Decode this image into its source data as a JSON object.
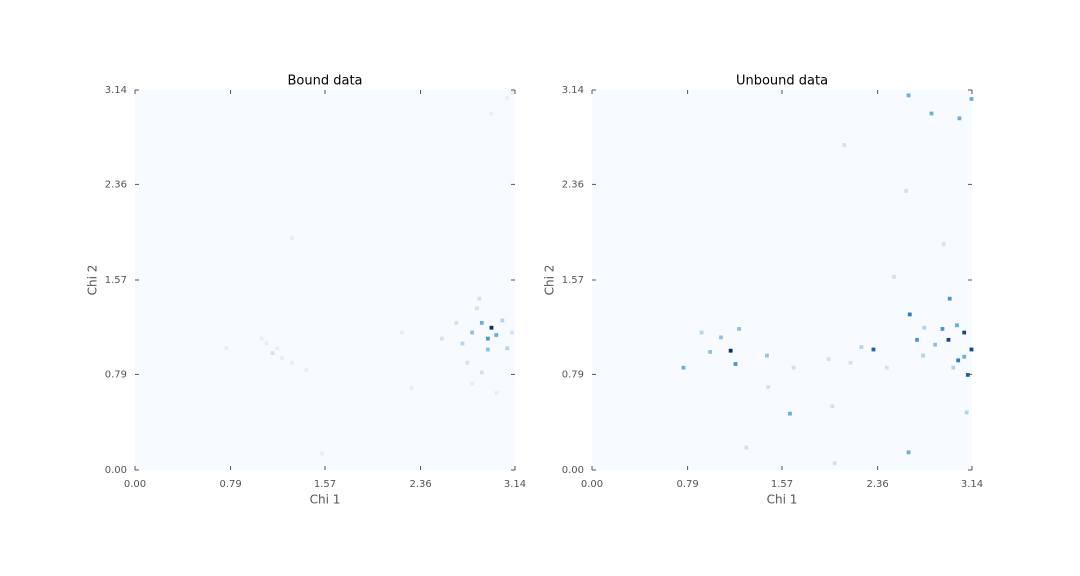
{
  "chart_data": [
    {
      "type": "hist2d",
      "title": "Bound data",
      "xlabel": "Chi 1",
      "ylabel": "Chi 2",
      "xlim": [
        0,
        3.14
      ],
      "ylim": [
        0,
        3.14
      ],
      "xticks": [
        {
          "value": 0,
          "label": "0.00"
        },
        0.79,
        1.57,
        2.36,
        3.14
      ],
      "yticks": [
        {
          "value": 0,
          "label": "0.00"
        },
        0.79,
        1.57,
        2.36,
        3.14
      ],
      "bin_size": 0.0314,
      "clim": [
        0,
        10
      ],
      "colors": [
        "#f7fbff",
        "#c6dbef",
        "#6baed6",
        "#2171b5",
        "#08306b"
      ],
      "cells": [
        {
          "x": 2.93,
          "y": 1.16,
          "count": 10
        },
        {
          "x": 2.9,
          "y": 1.07,
          "count": 6
        },
        {
          "x": 2.85,
          "y": 1.2,
          "count": 5
        },
        {
          "x": 2.97,
          "y": 1.1,
          "count": 5
        },
        {
          "x": 2.77,
          "y": 1.12,
          "count": 4
        },
        {
          "x": 2.9,
          "y": 0.98,
          "count": 4
        },
        {
          "x": 3.02,
          "y": 1.22,
          "count": 3
        },
        {
          "x": 2.69,
          "y": 1.03,
          "count": 3
        },
        {
          "x": 2.81,
          "y": 1.32,
          "count": 2
        },
        {
          "x": 3.06,
          "y": 0.99,
          "count": 3
        },
        {
          "x": 2.64,
          "y": 1.2,
          "count": 2
        },
        {
          "x": 2.52,
          "y": 1.07,
          "count": 2
        },
        {
          "x": 2.73,
          "y": 0.87,
          "count": 2
        },
        {
          "x": 2.85,
          "y": 0.79,
          "count": 2
        },
        {
          "x": 2.83,
          "y": 1.4,
          "count": 2
        },
        {
          "x": 3.1,
          "y": 1.12,
          "count": 2
        },
        {
          "x": 2.77,
          "y": 0.7,
          "count": 1
        },
        {
          "x": 2.97,
          "y": 0.62,
          "count": 1
        },
        {
          "x": 1.12,
          "y": 0.95,
          "count": 2
        },
        {
          "x": 1.07,
          "y": 1.03,
          "count": 1
        },
        {
          "x": 1.2,
          "y": 0.91,
          "count": 1
        },
        {
          "x": 1.03,
          "y": 1.07,
          "count": 1
        },
        {
          "x": 1.28,
          "y": 0.87,
          "count": 1
        },
        {
          "x": 1.16,
          "y": 0.99,
          "count": 1
        },
        {
          "x": 1.4,
          "y": 0.81,
          "count": 1
        },
        {
          "x": 3.06,
          "y": 3.06,
          "count": 1
        },
        {
          "x": 3.1,
          "y": 3.1,
          "count": 1
        },
        {
          "x": 2.93,
          "y": 2.93,
          "count": 1
        },
        {
          "x": 0.74,
          "y": 0.99,
          "count": 1
        },
        {
          "x": 2.27,
          "y": 0.66,
          "count": 1
        },
        {
          "x": 2.19,
          "y": 1.12,
          "count": 1
        },
        {
          "x": 1.53,
          "y": 0.12,
          "count": 1
        },
        {
          "x": 1.28,
          "y": 1.9,
          "count": 1
        }
      ]
    },
    {
      "type": "hist2d",
      "title": "Unbound data",
      "xlabel": "Chi 1",
      "ylabel": "Chi 2",
      "xlim": [
        0,
        3.14
      ],
      "ylim": [
        0,
        3.14
      ],
      "xticks": [
        {
          "value": 0,
          "label": "0.00"
        },
        0.79,
        1.57,
        2.36,
        3.14
      ],
      "yticks": [
        {
          "value": 0,
          "label": "0.00"
        },
        0.79,
        1.57,
        2.36,
        3.14
      ],
      "bin_size": 0.0314,
      "clim": [
        0,
        10
      ],
      "colors": [
        "#f7fbff",
        "#c6dbef",
        "#6baed6",
        "#2171b5",
        "#08306b"
      ],
      "cells": [
        {
          "x": 1.13,
          "y": 0.97,
          "count": 10
        },
        {
          "x": 1.17,
          "y": 0.86,
          "count": 6
        },
        {
          "x": 3.06,
          "y": 1.12,
          "count": 9
        },
        {
          "x": 2.93,
          "y": 1.06,
          "count": 9
        },
        {
          "x": 3.09,
          "y": 0.77,
          "count": 8
        },
        {
          "x": 2.61,
          "y": 1.27,
          "count": 7
        },
        {
          "x": 3.12,
          "y": 0.98,
          "count": 9
        },
        {
          "x": 2.67,
          "y": 1.06,
          "count": 6
        },
        {
          "x": 2.88,
          "y": 1.15,
          "count": 6
        },
        {
          "x": 3.01,
          "y": 0.89,
          "count": 7
        },
        {
          "x": 2.31,
          "y": 0.98,
          "count": 8
        },
        {
          "x": 0.74,
          "y": 0.83,
          "count": 5
        },
        {
          "x": 1.43,
          "y": 0.93,
          "count": 4
        },
        {
          "x": 1.2,
          "y": 1.15,
          "count": 4
        },
        {
          "x": 1.05,
          "y": 1.08,
          "count": 4
        },
        {
          "x": 0.96,
          "y": 0.96,
          "count": 4
        },
        {
          "x": 1.62,
          "y": 0.45,
          "count": 5
        },
        {
          "x": 2.6,
          "y": 3.08,
          "count": 5
        },
        {
          "x": 3.12,
          "y": 3.05,
          "count": 5
        },
        {
          "x": 2.79,
          "y": 2.93,
          "count": 5
        },
        {
          "x": 3.02,
          "y": 2.89,
          "count": 5
        },
        {
          "x": 2.6,
          "y": 0.13,
          "count": 5
        },
        {
          "x": 2.94,
          "y": 1.4,
          "count": 6
        },
        {
          "x": 0.89,
          "y": 1.12,
          "count": 3
        },
        {
          "x": 2.21,
          "y": 1.0,
          "count": 3
        },
        {
          "x": 1.26,
          "y": 0.17,
          "count": 2
        },
        {
          "x": 2.07,
          "y": 2.67,
          "count": 2
        },
        {
          "x": 2.58,
          "y": 2.29,
          "count": 2
        },
        {
          "x": 2.89,
          "y": 1.85,
          "count": 2
        },
        {
          "x": 2.48,
          "y": 1.58,
          "count": 2
        },
        {
          "x": 1.99,
          "y": 0.04,
          "count": 2
        },
        {
          "x": 1.97,
          "y": 0.51,
          "count": 2
        },
        {
          "x": 3.08,
          "y": 0.46,
          "count": 3
        },
        {
          "x": 2.97,
          "y": 0.83,
          "count": 3
        },
        {
          "x": 2.72,
          "y": 0.93,
          "count": 3
        },
        {
          "x": 2.42,
          "y": 0.83,
          "count": 2
        },
        {
          "x": 1.94,
          "y": 0.9,
          "count": 2
        },
        {
          "x": 1.65,
          "y": 0.83,
          "count": 2
        },
        {
          "x": 2.12,
          "y": 0.87,
          "count": 2
        },
        {
          "x": 1.44,
          "y": 0.67,
          "count": 2
        },
        {
          "x": 2.73,
          "y": 1.16,
          "count": 3
        },
        {
          "x": 2.82,
          "y": 1.02,
          "count": 4
        },
        {
          "x": 3.0,
          "y": 1.18,
          "count": 5
        },
        {
          "x": 3.06,
          "y": 0.92,
          "count": 5
        }
      ]
    }
  ]
}
